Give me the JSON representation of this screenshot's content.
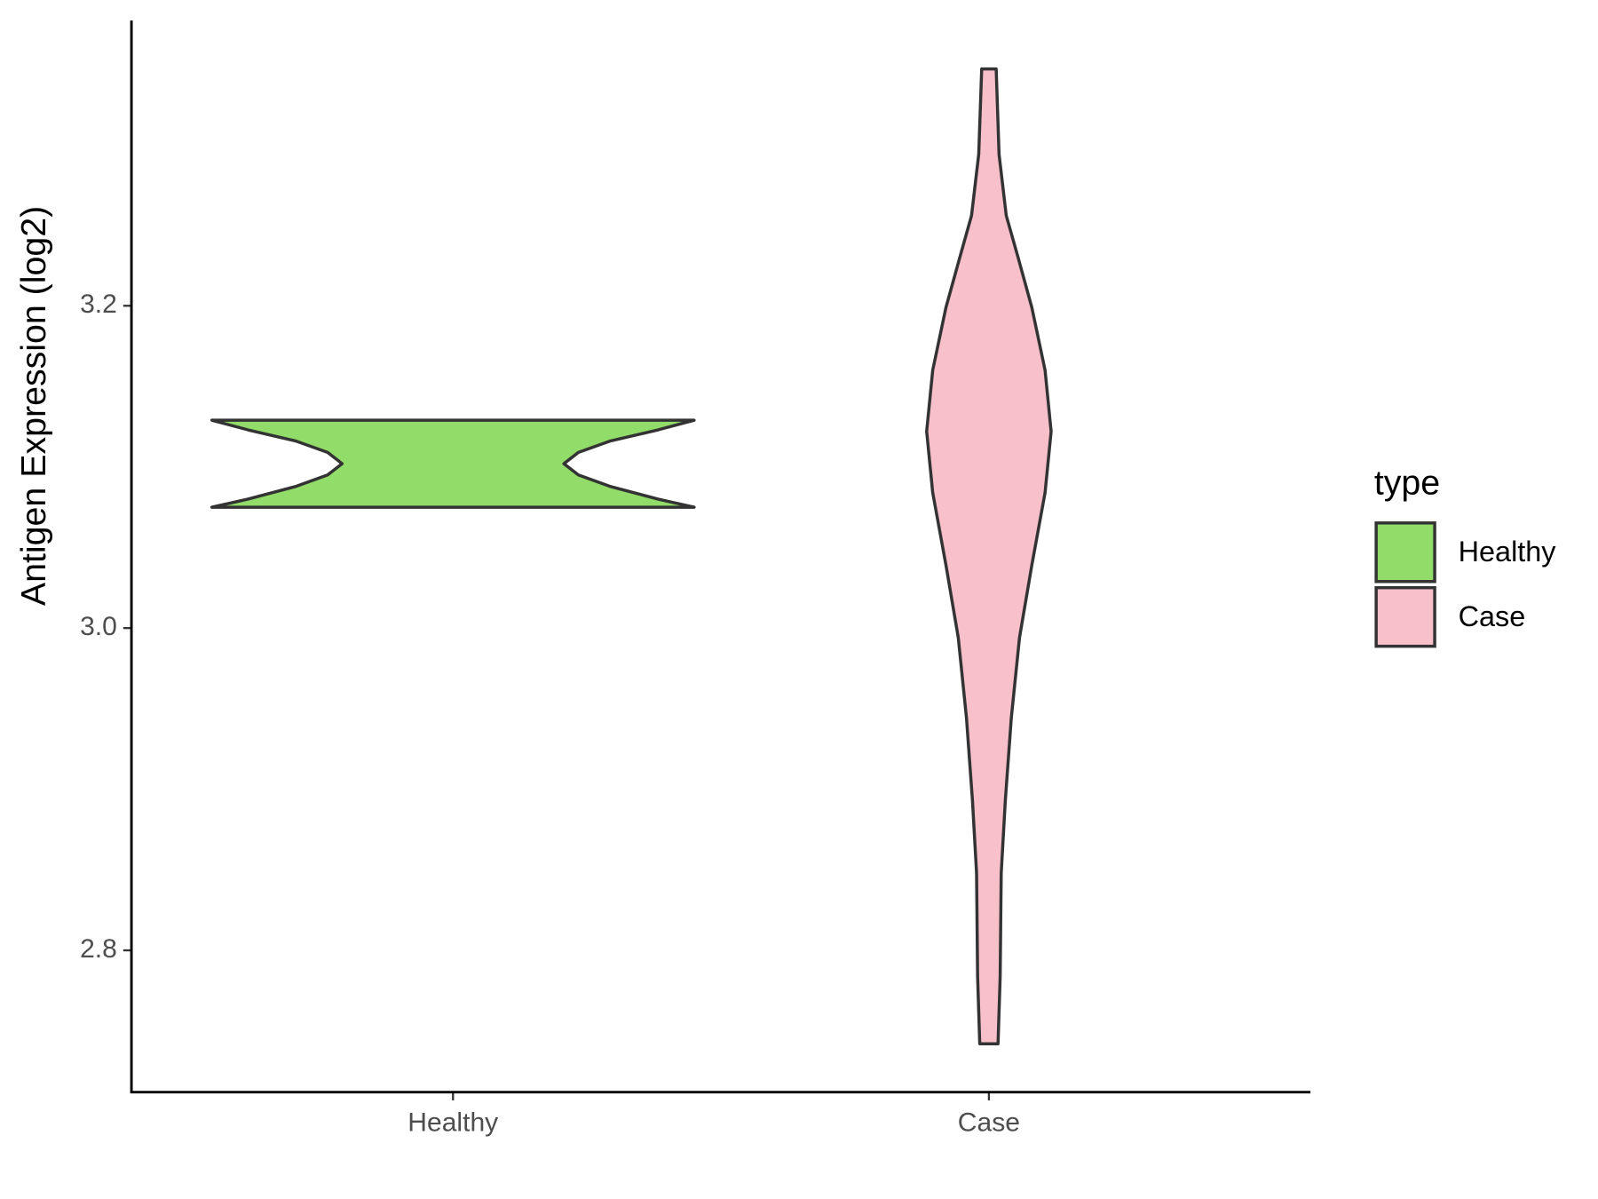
{
  "chart_data": {
    "type": "violin",
    "y_label": "Antigen Expression (log2)",
    "legend_title": "type",
    "categories": [
      "Healthy",
      "Case"
    ],
    "ylim": [
      2.712,
      3.377
    ],
    "yticks": [
      {
        "value": 2.8,
        "label": "2.8"
      },
      {
        "value": 3.0,
        "label": "3.0"
      },
      {
        "value": 3.2,
        "label": "3.2"
      }
    ],
    "series": [
      {
        "name": "Healthy",
        "color": "#92dc6a",
        "y": [
          3.075,
          3.08,
          3.088,
          3.095,
          3.102,
          3.109,
          3.116,
          3.123,
          3.129
        ],
        "density": [
          1.0,
          0.85,
          0.65,
          0.52,
          0.46,
          0.52,
          0.65,
          0.85,
          1.0
        ]
      },
      {
        "name": "Case",
        "color": "#f7c0cb",
        "y": [
          2.742,
          2.784,
          2.848,
          2.893,
          2.944,
          2.994,
          3.039,
          3.084,
          3.122,
          3.16,
          3.199,
          3.231,
          3.256,
          3.294,
          3.347
        ],
        "density": [
          0.038,
          0.047,
          0.051,
          0.068,
          0.093,
          0.127,
          0.178,
          0.233,
          0.258,
          0.233,
          0.178,
          0.119,
          0.072,
          0.042,
          0.03
        ]
      }
    ]
  }
}
